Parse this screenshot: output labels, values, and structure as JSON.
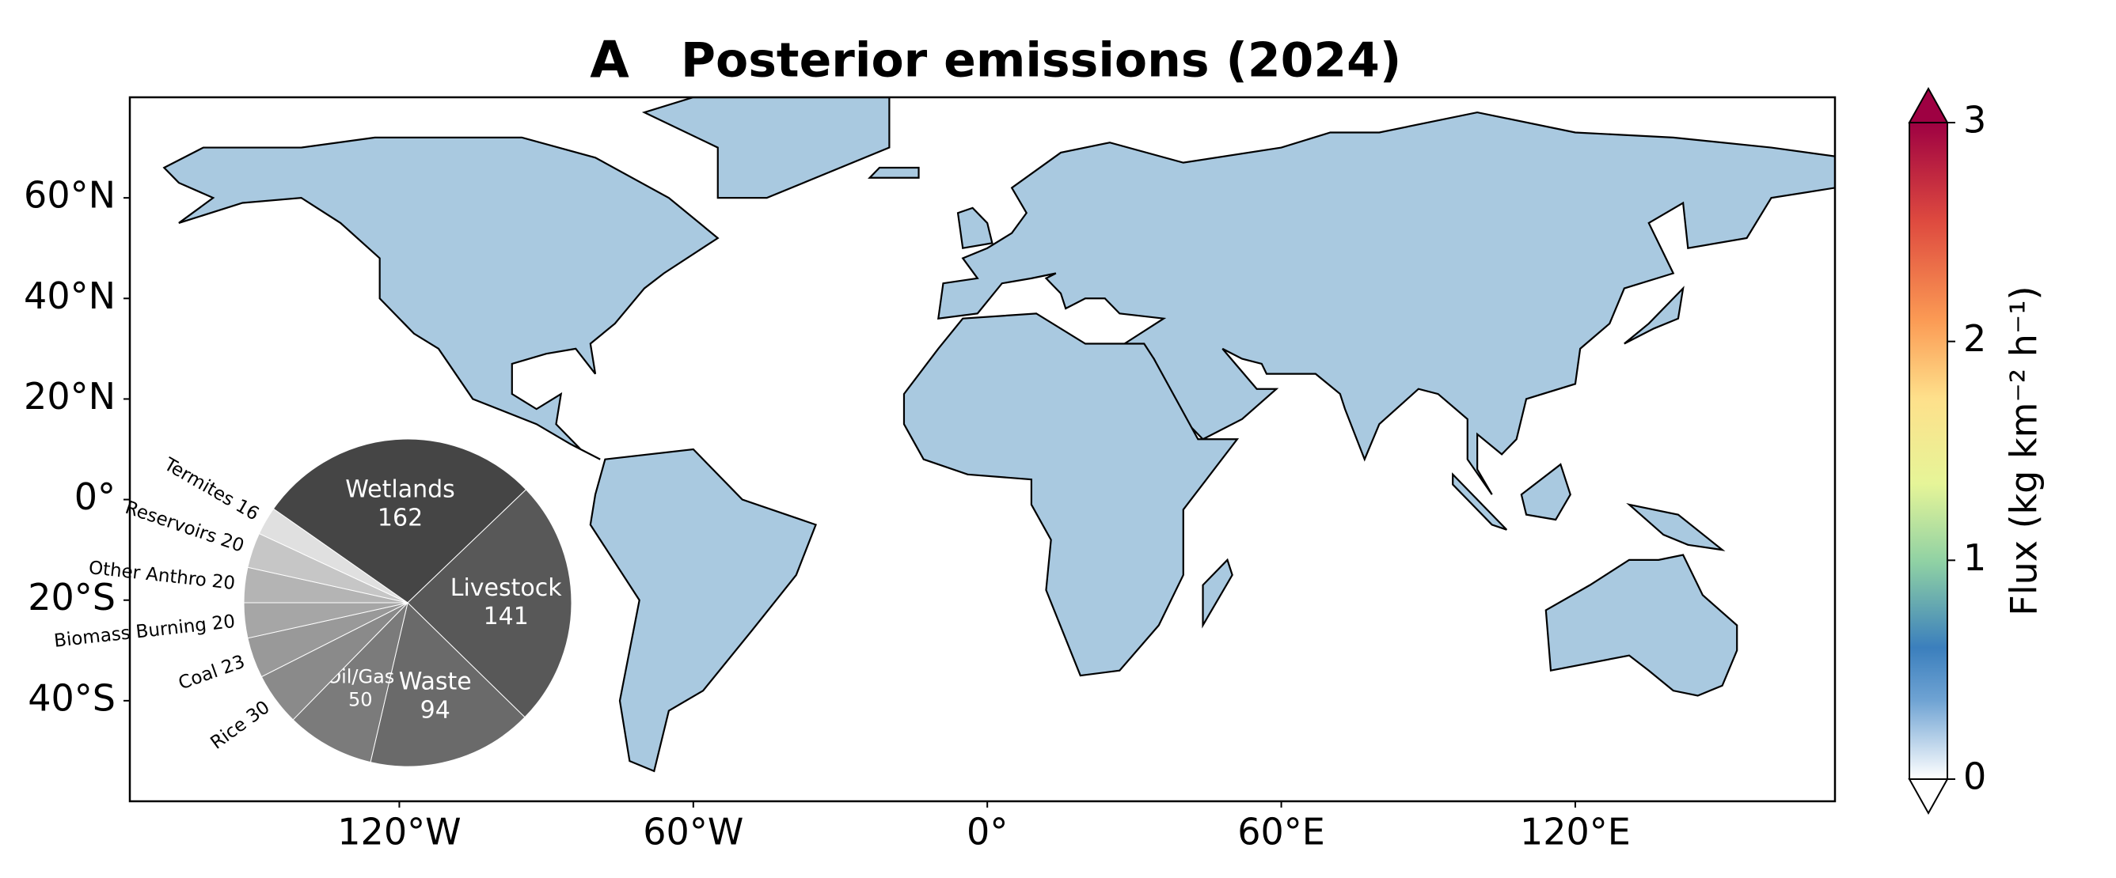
{
  "chart_data": [
    {
      "type": "map",
      "panel_label": "A",
      "title": "Posterior emissions (2024)",
      "xlim": [
        -175,
        173
      ],
      "ylim": [
        -60,
        80
      ],
      "xticks": [
        {
          "value": -120,
          "label": "120°W"
        },
        {
          "value": -60,
          "label": "60°W"
        },
        {
          "value": 0,
          "label": "0°"
        },
        {
          "value": 60,
          "label": "60°E"
        },
        {
          "value": 120,
          "label": "120°E"
        }
      ],
      "yticks": [
        {
          "value": 60,
          "label": "60°N"
        },
        {
          "value": 40,
          "label": "40°N"
        },
        {
          "value": 20,
          "label": "20°N"
        },
        {
          "value": 0,
          "label": "0°"
        },
        {
          "value": -20,
          "label": "20°S"
        },
        {
          "value": -40,
          "label": "40°S"
        }
      ],
      "colorbar": {
        "label": "Flux (kg km⁻² h⁻¹)",
        "lim": [
          0,
          3
        ],
        "ticks": [
          0,
          1,
          2,
          3
        ]
      }
    },
    {
      "type": "pie",
      "categories": [
        "Wetlands",
        "Livestock",
        "Waste",
        "Oil/Gas",
        "Rice",
        "Coal",
        "Biomass Burning",
        "Other Anthro",
        "Reservoirs",
        "Termites"
      ],
      "values": [
        162,
        141,
        94,
        50,
        30,
        23,
        20,
        20,
        20,
        16
      ],
      "colors": [
        "#454545",
        "#585858",
        "#6a6a6a",
        "#7b7b7b",
        "#8a8a8a",
        "#999999",
        "#a6a6a6",
        "#b4b4b4",
        "#c6c6c6",
        "#e0e0e0"
      ]
    }
  ]
}
